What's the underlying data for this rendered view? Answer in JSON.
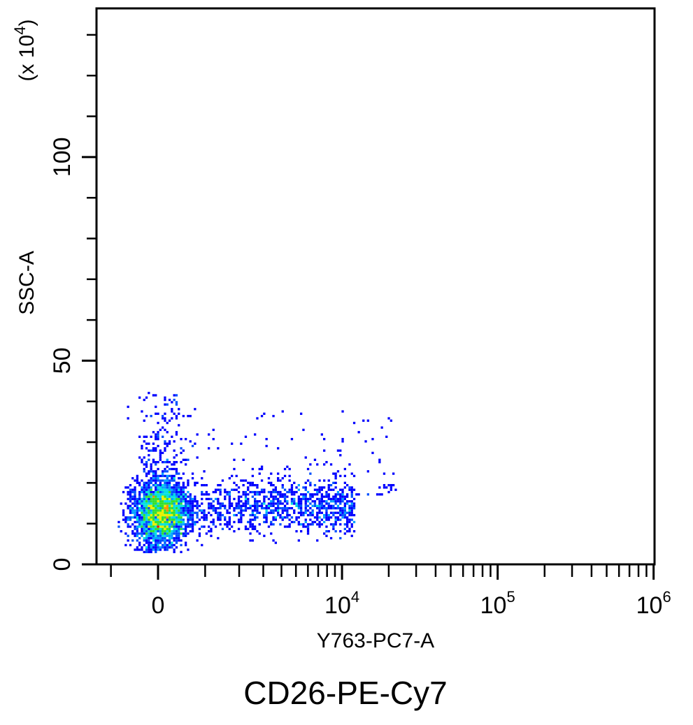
{
  "chart_data": {
    "type": "scatter",
    "subtype": "density-dot-plot",
    "title": "CD26-PE-Cy7",
    "xlabel": "Y763-PC7-A",
    "ylabel": "SSC-A",
    "y_multiplier": {
      "prefix": "(x 10",
      "exp": "4",
      "suffix": ")"
    },
    "x_scale": "biexponential",
    "x_linear_width": 1328,
    "xlim": [
      -1400,
      1000000
    ],
    "ylim": [
      0,
      136.5
    ],
    "x_ticks_major": [
      {
        "value": 0,
        "base": "0",
        "exp": ""
      },
      {
        "value": 10000,
        "base": "10",
        "exp": "4"
      },
      {
        "value": 100000,
        "base": "10",
        "exp": "5"
      },
      {
        "value": 1000000,
        "base": "10",
        "exp": "6"
      }
    ],
    "x_ticks_minor": [
      -1000,
      1000,
      2000,
      3000,
      4000,
      5000,
      6000,
      7000,
      8000,
      9000,
      20000,
      30000,
      40000,
      50000,
      60000,
      70000,
      80000,
      90000,
      200000,
      300000,
      400000,
      500000,
      600000,
      700000,
      800000,
      900000
    ],
    "y_ticks_major": [
      {
        "value": 0,
        "label": "0"
      },
      {
        "value": 50,
        "label": "50"
      },
      {
        "value": 100,
        "label": "100"
      }
    ],
    "y_ticks_minor": [
      10,
      20,
      30,
      40,
      60,
      70,
      80,
      90,
      110,
      120,
      130
    ],
    "grid": false,
    "populations": [
      {
        "name": "negative-core",
        "n": 2500,
        "x_median": 70,
        "x_spread_asinh": 0.22,
        "y_mean": 12.5,
        "y_sd": 3.5
      },
      {
        "name": "negative-tail",
        "n": 320,
        "x_median": 70,
        "x_spread_asinh": 0.2,
        "y_range": [
          15,
          42
        ]
      },
      {
        "name": "cd26-positive",
        "n": 950,
        "x_range": [
          900,
          12000
        ],
        "y_mean": 14,
        "y_sd": 3.3
      },
      {
        "name": "sparse",
        "n": 130,
        "x_range": [
          400,
          22000
        ],
        "y_range": [
          17,
          38
        ]
      }
    ],
    "density_colors": [
      "#0000ff",
      "#0050ff",
      "#00a0ff",
      "#00e0e0",
      "#30e030",
      "#e8f000",
      "#ff9000",
      "#ff0000"
    ],
    "density_thresholds": [
      1,
      2,
      3,
      4,
      6,
      9,
      12,
      14
    ]
  }
}
